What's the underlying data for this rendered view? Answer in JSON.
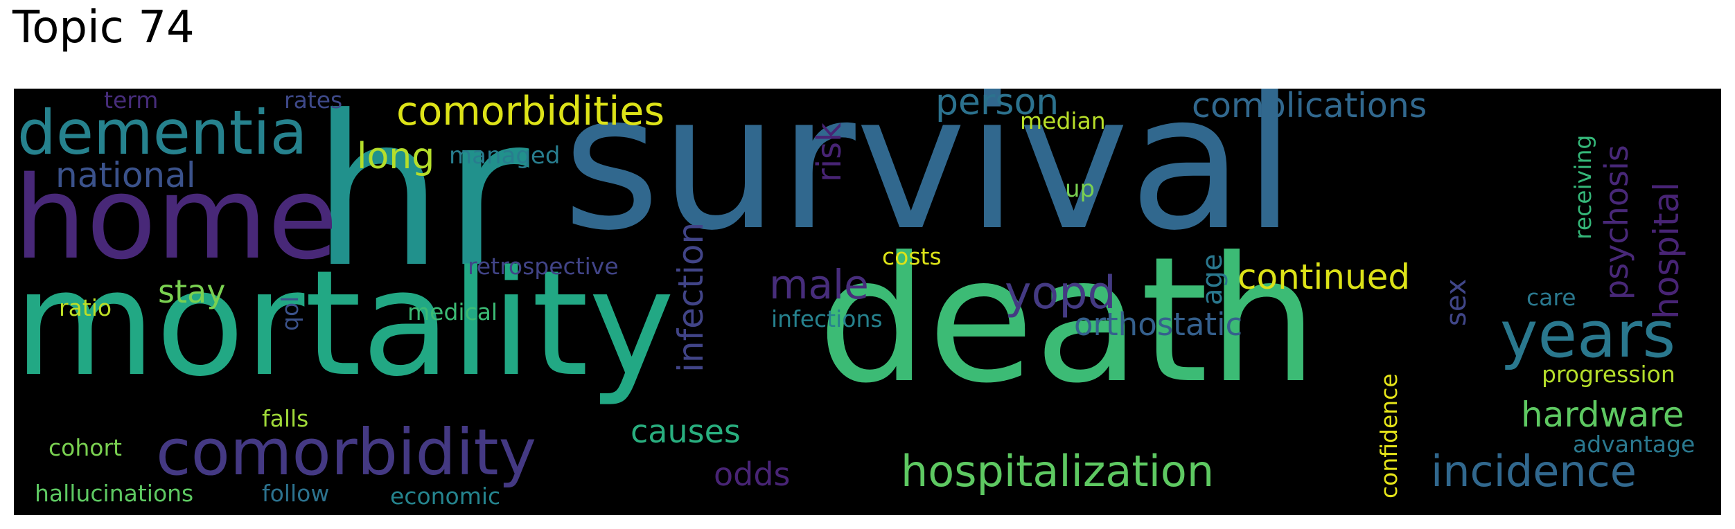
{
  "title": "Topic 74",
  "words": [
    {
      "text": "survival",
      "color": "#31688e"
    },
    {
      "text": "hr",
      "color": "#21918c"
    },
    {
      "text": "mortality",
      "color": "#22a884"
    },
    {
      "text": "death",
      "color": "#3cbb75"
    },
    {
      "text": "home",
      "color": "#482878"
    },
    {
      "text": "dementia",
      "color": "#26828e"
    },
    {
      "text": "comorbidity",
      "color": "#443983"
    },
    {
      "text": "years",
      "color": "#2a788e"
    },
    {
      "text": "hospitalization",
      "color": "#5ec962"
    },
    {
      "text": "incidence",
      "color": "#31688e"
    },
    {
      "text": "comorbidities",
      "color": "#dde318"
    },
    {
      "text": "complications",
      "color": "#31688e"
    },
    {
      "text": "national",
      "color": "#3b528b"
    },
    {
      "text": "long",
      "color": "#b5de2b"
    },
    {
      "text": "infection",
      "color": "#414487"
    },
    {
      "text": "risk",
      "color": "#482475"
    },
    {
      "text": "person",
      "color": "#2c728e"
    },
    {
      "text": "male",
      "color": "#472d7b"
    },
    {
      "text": "yopd",
      "color": "#443a83"
    },
    {
      "text": "continued",
      "color": "#dde318"
    },
    {
      "text": "orthostatic",
      "color": "#35608d"
    },
    {
      "text": "hardware",
      "color": "#5ec962"
    },
    {
      "text": "hospital",
      "color": "#482475"
    },
    {
      "text": "psychosis",
      "color": "#482878"
    },
    {
      "text": "causes",
      "color": "#29af7f"
    },
    {
      "text": "odds",
      "color": "#482475"
    },
    {
      "text": "stay",
      "color": "#7ad151"
    },
    {
      "text": "age",
      "color": "#2a788e"
    },
    {
      "text": "sex",
      "color": "#404688"
    },
    {
      "text": "managed",
      "color": "#287d8e"
    },
    {
      "text": "median",
      "color": "#b8de29"
    },
    {
      "text": "up",
      "color": "#7ad151"
    },
    {
      "text": "costs",
      "color": "#dde318"
    },
    {
      "text": "retrospective",
      "color": "#414487"
    },
    {
      "text": "infections",
      "color": "#26828e"
    },
    {
      "text": "medical",
      "color": "#3cbb75"
    },
    {
      "text": "ratio",
      "color": "#bddf26"
    },
    {
      "text": "qol",
      "color": "#3b528b"
    },
    {
      "text": "falls",
      "color": "#a0da39"
    },
    {
      "text": "cohort",
      "color": "#7ad151"
    },
    {
      "text": "hallucinations",
      "color": "#5ec962"
    },
    {
      "text": "follow",
      "color": "#2c728e"
    },
    {
      "text": "economic",
      "color": "#25848e"
    },
    {
      "text": "term",
      "color": "#472d7b"
    },
    {
      "text": "rates",
      "color": "#3e4989"
    },
    {
      "text": "receiving",
      "color": "#35b779"
    },
    {
      "text": "care",
      "color": "#2a788e"
    },
    {
      "text": "progression",
      "color": "#b5de2b"
    },
    {
      "text": "advantage",
      "color": "#2a788e"
    },
    {
      "text": "confidence",
      "color": "#e5e419"
    }
  ]
}
